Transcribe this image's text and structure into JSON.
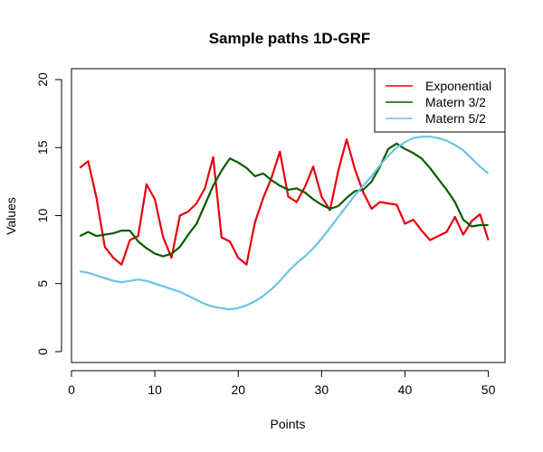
{
  "chart_data": {
    "type": "line",
    "title": "Sample paths 1D-GRF",
    "xlabel": "Points",
    "ylabel": "Values",
    "xlim": [
      0,
      52
    ],
    "ylim": [
      -0.8,
      20.8
    ],
    "x_ticks": [
      0,
      10,
      20,
      30,
      40,
      50
    ],
    "y_ticks": [
      0,
      5,
      10,
      15,
      20
    ],
    "grid": false,
    "legend_position": "top-right",
    "x": [
      1,
      2,
      3,
      4,
      5,
      6,
      7,
      8,
      9,
      10,
      11,
      12,
      13,
      14,
      15,
      16,
      17,
      18,
      19,
      20,
      21,
      22,
      23,
      24,
      25,
      26,
      27,
      28,
      29,
      30,
      31,
      32,
      33,
      34,
      35,
      36,
      37,
      38,
      39,
      40,
      41,
      42,
      43,
      44,
      45,
      46,
      47,
      48,
      49,
      50
    ],
    "series": [
      {
        "name": "Exponential",
        "color": "#E8000B",
        "values": [
          13.5,
          14.0,
          11.3,
          7.7,
          6.9,
          6.4,
          8.2,
          8.5,
          12.3,
          11.2,
          8.4,
          6.9,
          10.0,
          10.3,
          10.9,
          12.0,
          14.3,
          8.4,
          8.1,
          6.9,
          6.4,
          9.5,
          11.3,
          12.8,
          14.7,
          11.4,
          11.0,
          12.1,
          13.6,
          11.4,
          10.4,
          13.3,
          15.6,
          13.4,
          11.7,
          10.5,
          11.0,
          10.9,
          10.8,
          9.4,
          9.7,
          8.9,
          8.2,
          8.5,
          8.8,
          9.9,
          8.6,
          9.6,
          10.1,
          8.2
        ]
      },
      {
        "name": "Matern 3/2",
        "color": "#0A5C00",
        "values": [
          8.5,
          8.8,
          8.5,
          8.6,
          8.7,
          8.9,
          8.9,
          8.1,
          7.6,
          7.2,
          7.0,
          7.2,
          7.7,
          8.6,
          9.4,
          10.8,
          12.2,
          13.3,
          14.2,
          13.9,
          13.5,
          12.9,
          13.1,
          12.6,
          12.2,
          11.9,
          12.0,
          11.7,
          11.2,
          10.8,
          10.5,
          10.7,
          11.3,
          11.8,
          11.9,
          12.5,
          13.6,
          14.9,
          15.3,
          14.9,
          14.6,
          14.2,
          13.5,
          12.7,
          11.9,
          11.0,
          9.7,
          9.2,
          9.3,
          9.3
        ]
      },
      {
        "name": "Matern 5/2",
        "color": "#6BC4E4",
        "values": [
          5.9,
          5.8,
          5.6,
          5.4,
          5.2,
          5.1,
          5.2,
          5.3,
          5.2,
          5.0,
          4.8,
          4.6,
          4.4,
          4.1,
          3.8,
          3.5,
          3.3,
          3.2,
          3.1,
          3.2,
          3.4,
          3.7,
          4.1,
          4.6,
          5.2,
          5.9,
          6.5,
          7.0,
          7.6,
          8.3,
          9.1,
          9.9,
          10.7,
          11.5,
          12.2,
          12.9,
          13.7,
          14.4,
          15.0,
          15.4,
          15.7,
          15.8,
          15.8,
          15.7,
          15.5,
          15.2,
          14.8,
          14.2,
          13.6,
          13.1
        ]
      }
    ]
  }
}
